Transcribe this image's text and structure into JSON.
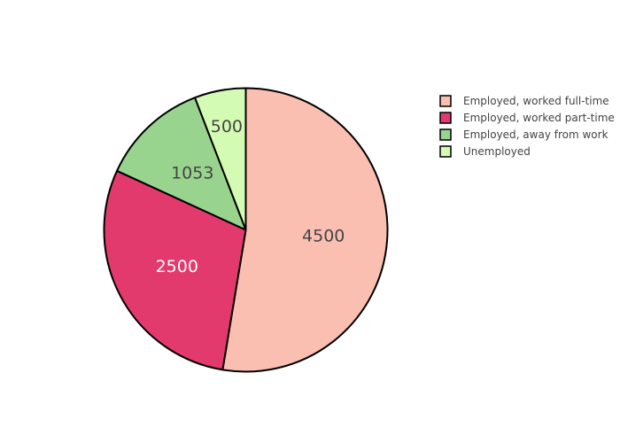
{
  "chart_data": {
    "type": "pie",
    "title": "",
    "slices": [
      {
        "label": "Employed, worked full-time",
        "value": 4500,
        "color": "#FBBFB1"
      },
      {
        "label": "Employed, worked part-time",
        "value": 2500,
        "color": "#E23A6C"
      },
      {
        "label": "Employed, away from work",
        "value": 1053,
        "color": "#98D48E"
      },
      {
        "label": "Unemployed",
        "value": 500,
        "color": "#D4FBB4"
      }
    ],
    "text_colors": {
      "on_light": "#444444",
      "on_dark": "#ffffff"
    },
    "outline_color": "#000000",
    "sort": "descending",
    "direction": "clockwise",
    "start_angle": "12 o'clock",
    "legend": {
      "placement": "top-right"
    }
  }
}
